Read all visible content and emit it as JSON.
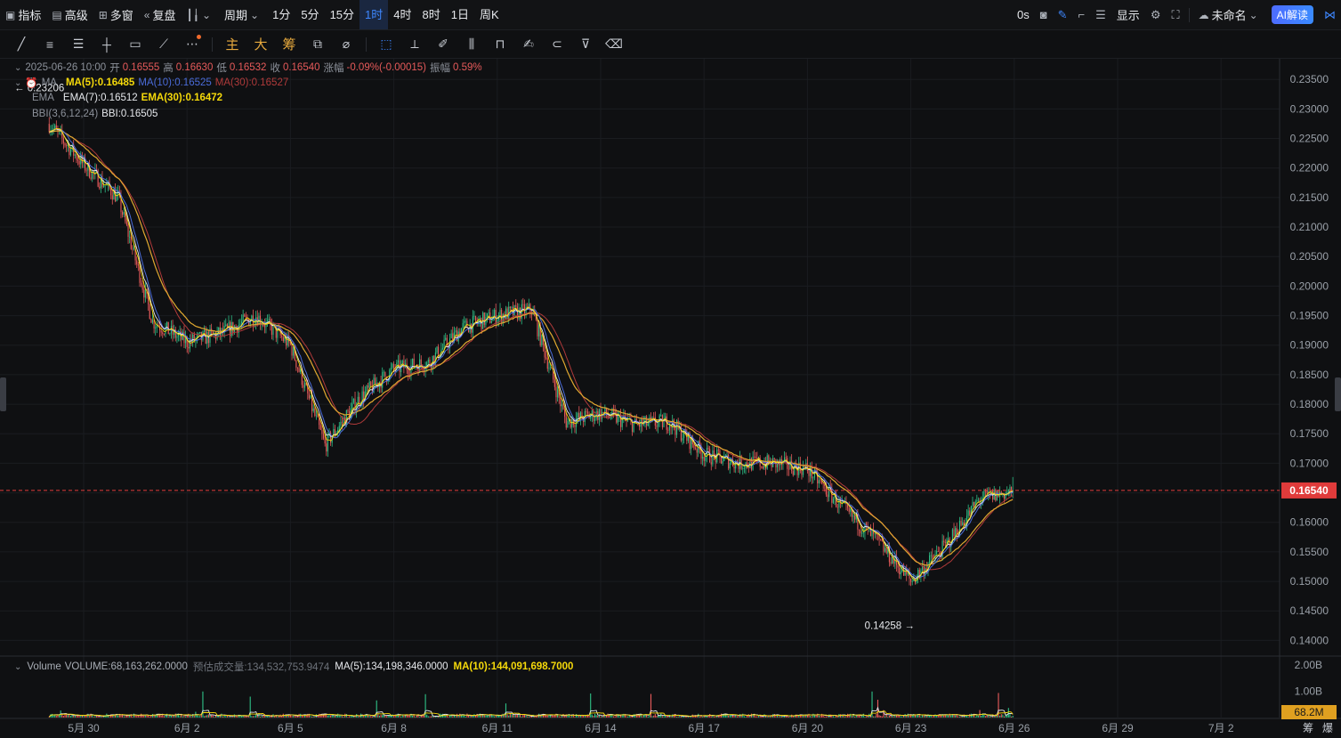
{
  "topbar": {
    "indicators_label": "指标",
    "advanced_label": "高级",
    "multi_window_label": "多窗",
    "replay_label": "复盘",
    "period_label": "周期",
    "periods": [
      "1分",
      "5分",
      "15分",
      "1时",
      "4时",
      "8时",
      "1日",
      "周K"
    ],
    "active_period": "1时",
    "latency": "0s",
    "display_label": "显示",
    "layout_name": "未命名",
    "ai_label": "AI解读"
  },
  "drawing_toolbar": {
    "main_label": "主",
    "big_label": "大",
    "chips_label": "筹"
  },
  "legend": {
    "date": "2025-06-26 10:00",
    "open_label": "开",
    "open": "0.16555",
    "high_label": "高",
    "high": "0.16630",
    "low_label": "低",
    "low": "0.16532",
    "close_label": "收",
    "close": "0.16540",
    "change_label": "涨幅",
    "change": "-0.09%(-0.00015)",
    "amplitude_label": "振幅",
    "amplitude": "0.59%",
    "ma_name": "MA",
    "ma5": "MA(5):0.16485",
    "ma10": "MA(10):0.16525",
    "ma30": "MA(30):0.16527",
    "ema_name": "EMA",
    "ema7": "EMA(7):0.16512",
    "ema30": "EMA(30):0.16472",
    "bbi_name": "BBI(3,6,12,24)",
    "bbi": "BBI:0.16505"
  },
  "volume_legend": {
    "name": "Volume",
    "volume": "VOLUME:68,163,262.0000",
    "estimated": "预估成交量:134,532,753.9474",
    "ma5": "MA(5):134,198,346.0000",
    "ma10": "MA(10):144,091,698.7000"
  },
  "colors": {
    "up": "#2ebd85",
    "down": "#e65a5a",
    "ma5": "#f5d90a",
    "ma10": "#4a6bd8",
    "ma30": "#b03a3a",
    "ema7": "#e8e8e8",
    "ema30": "#e0a830",
    "bbi": "#5fc6e8",
    "accent": "#3e87ff",
    "price_tag": "#e03b3b"
  },
  "chart_data": {
    "type": "candlestick",
    "x_tick_labels": [
      "5月 30",
      "6月 2",
      "6月 5",
      "6月 8",
      "6月 11",
      "6月 14",
      "6月 17",
      "6月 20",
      "6月 23",
      "6月 26",
      "6月 29",
      "7月 2"
    ],
    "y_tick_labels": [
      "0.23500",
      "0.23000",
      "0.22500",
      "0.22000",
      "0.21500",
      "0.21000",
      "0.20500",
      "0.20000",
      "0.19500",
      "0.19000",
      "0.18500",
      "0.18000",
      "0.17500",
      "0.17000",
      "0.16500",
      "0.16000",
      "0.15500",
      "0.15000",
      "0.14500",
      "0.14000"
    ],
    "ylim": [
      0.1375,
      0.2385
    ],
    "current_price": 0.1654,
    "current_price_label": "0.16540",
    "high_marker": {
      "date": "5月 29",
      "value": 0.23206,
      "label": "0.23206"
    },
    "low_marker": {
      "date": "6月 23",
      "value": 0.14258,
      "label": "0.14258"
    },
    "close_path": [
      {
        "date": "5月 29",
        "close": 0.2275
      },
      {
        "date": "5月 30",
        "close": 0.2205
      },
      {
        "date": "5月 31",
        "close": 0.215
      },
      {
        "date": "6月 1",
        "close": 0.194
      },
      {
        "date": "6月 2",
        "close": 0.1905
      },
      {
        "date": "6月 3",
        "close": 0.192
      },
      {
        "date": "6月 4",
        "close": 0.195
      },
      {
        "date": "6月 5",
        "close": 0.19
      },
      {
        "date": "6月 6",
        "close": 0.173
      },
      {
        "date": "6月 7",
        "close": 0.181
      },
      {
        "date": "6月 8",
        "close": 0.186
      },
      {
        "date": "6月 9",
        "close": 0.187
      },
      {
        "date": "6月 10",
        "close": 0.193
      },
      {
        "date": "6月 11",
        "close": 0.195
      },
      {
        "date": "6月 12",
        "close": 0.196
      },
      {
        "date": "6月 13",
        "close": 0.177
      },
      {
        "date": "6月 14",
        "close": 0.1785
      },
      {
        "date": "6月 15",
        "close": 0.1765
      },
      {
        "date": "6月 16",
        "close": 0.177
      },
      {
        "date": "6月 17",
        "close": 0.1715
      },
      {
        "date": "6月 18",
        "close": 0.17
      },
      {
        "date": "6月 19",
        "close": 0.17
      },
      {
        "date": "6月 20",
        "close": 0.169
      },
      {
        "date": "6月 21",
        "close": 0.1625
      },
      {
        "date": "6月 22",
        "close": 0.157
      },
      {
        "date": "6月 23",
        "close": 0.15
      },
      {
        "date": "6月 24",
        "close": 0.156
      },
      {
        "date": "6月 25",
        "close": 0.164
      },
      {
        "date": "6月 26",
        "close": 0.1654
      }
    ],
    "volume": {
      "y_tick_labels": [
        "2.00B",
        "1.00B"
      ],
      "last_label": "68.2M",
      "last_value": 68163262
    }
  },
  "right_buttons": [
    "筹",
    "爆"
  ]
}
